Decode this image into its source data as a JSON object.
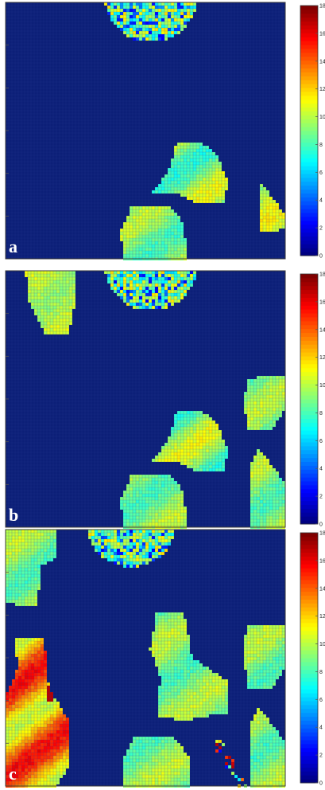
{
  "figure": {
    "panels": [
      "a",
      "b",
      "c"
    ],
    "colormap": "jet",
    "background_color": "#0c1f78"
  },
  "chart_data": [
    {
      "type": "heatmap",
      "panel_label": "a",
      "title": "",
      "xlabel": "",
      "ylabel": "",
      "grid": true,
      "colorbar": {
        "min": 0,
        "max": 18,
        "ticks": [
          "0",
          "2",
          "4",
          "6",
          "8",
          "10",
          "12",
          "14",
          "16",
          "18"
        ]
      },
      "regions": [
        {
          "name": "top-semicircle",
          "value_range": [
            2,
            14
          ],
          "mean": 9
        },
        {
          "name": "triangle-mid",
          "value_range": [
            6,
            12
          ],
          "mean": 9.5
        },
        {
          "name": "wedge-right",
          "value_range": [
            8,
            12
          ],
          "mean": 10
        },
        {
          "name": "hexagon-bottom",
          "value_range": [
            7,
            11
          ],
          "mean": 9.5
        }
      ]
    },
    {
      "type": "heatmap",
      "panel_label": "b",
      "title": "",
      "xlabel": "",
      "ylabel": "",
      "grid": true,
      "colorbar": {
        "min": 0,
        "max": 18,
        "ticks": [
          "0",
          "2",
          "4",
          "6",
          "8",
          "10",
          "12",
          "14",
          "16",
          "18"
        ]
      },
      "regions": [
        {
          "name": "top-left-block",
          "value_range": [
            9,
            11
          ],
          "mean": 10
        },
        {
          "name": "top-semicircle",
          "value_range": [
            2,
            14
          ],
          "mean": 9
        },
        {
          "name": "right-upper-block",
          "value_range": [
            7,
            11
          ],
          "mean": 9.5
        },
        {
          "name": "triangle-mid",
          "value_range": [
            6,
            12
          ],
          "mean": 9.5
        },
        {
          "name": "right-lower-block",
          "value_range": [
            7,
            11
          ],
          "mean": 9.5
        },
        {
          "name": "hexagon-bottom",
          "value_range": [
            7,
            11
          ],
          "mean": 9.5
        }
      ]
    },
    {
      "type": "heatmap",
      "panel_label": "c",
      "title": "",
      "xlabel": "",
      "ylabel": "",
      "grid": true,
      "colorbar": {
        "min": 0,
        "max": 18,
        "ticks": [
          "0",
          "2",
          "4",
          "6",
          "8",
          "10",
          "12",
          "14",
          "16",
          "18"
        ]
      },
      "regions": [
        {
          "name": "top-left-block",
          "value_range": [
            7,
            11
          ],
          "mean": 9
        },
        {
          "name": "top-semicircle",
          "value_range": [
            2,
            14
          ],
          "mean": 9
        },
        {
          "name": "left-column",
          "value_range": [
            8,
            17
          ],
          "mean": 10
        },
        {
          "name": "center-column",
          "value_range": [
            7,
            11
          ],
          "mean": 9.5
        },
        {
          "name": "right-upper-block",
          "value_range": [
            7,
            11
          ],
          "mean": 9.5
        },
        {
          "name": "right-lower-block",
          "value_range": [
            7,
            11
          ],
          "mean": 9.5
        },
        {
          "name": "hexagon-bottom",
          "value_range": [
            7,
            11
          ],
          "mean": 9.5
        },
        {
          "name": "scatter-bottom",
          "value_range": [
            2,
            17
          ],
          "mean": 8
        }
      ]
    }
  ]
}
